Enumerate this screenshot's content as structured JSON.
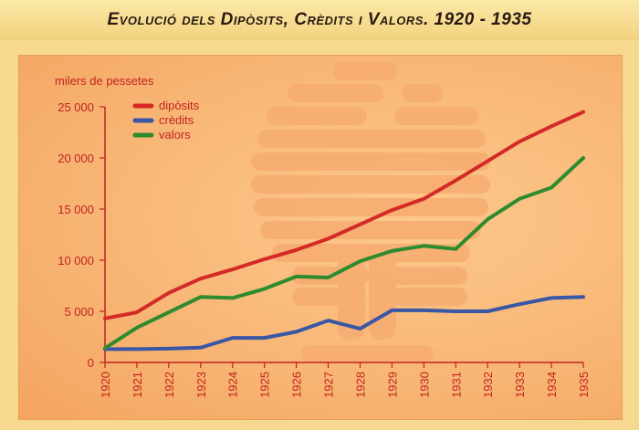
{
  "title": "Evolució dels Dipòsits, Crèdits i Valors. 1920 - 1935",
  "chart_data": {
    "type": "line",
    "title": "Evolució dels Dipòsits, Crèdits i Valors. 1920 - 1935",
    "ylabel": "milers de pessetes",
    "xlabel": "",
    "x": [
      "1920",
      "1921",
      "1922",
      "1923",
      "1924",
      "1925",
      "1926",
      "1927",
      "1928",
      "1929",
      "1930",
      "1931",
      "1932",
      "1933",
      "1934",
      "1935"
    ],
    "ylim": [
      0,
      25000
    ],
    "yticks": [
      0,
      5000,
      10000,
      15000,
      20000,
      25000
    ],
    "ytick_labels": [
      "0",
      "5 000",
      "10 000",
      "15 000",
      "20 000",
      "25 000"
    ],
    "grid": false,
    "legend_position": "top-left",
    "series": [
      {
        "name": "dipòsits",
        "color": "#d42a26",
        "values": [
          4300,
          4900,
          6800,
          8200,
          9100,
          10100,
          11000,
          12100,
          13500,
          14900,
          16000,
          17800,
          19700,
          21600,
          23100,
          24500
        ]
      },
      {
        "name": "crèdits",
        "color": "#3a57a6",
        "values": [
          1300,
          1300,
          1350,
          1450,
          2400,
          2400,
          3000,
          4100,
          3300,
          5100,
          5100,
          5000,
          5000,
          5700,
          6300,
          6400
        ]
      },
      {
        "name": "valors",
        "color": "#2e8b2e",
        "values": [
          1400,
          3400,
          4900,
          6400,
          6300,
          7200,
          8400,
          8300,
          9900,
          10900,
          11400,
          11100,
          14000,
          16000,
          17100,
          20000
        ]
      }
    ]
  }
}
